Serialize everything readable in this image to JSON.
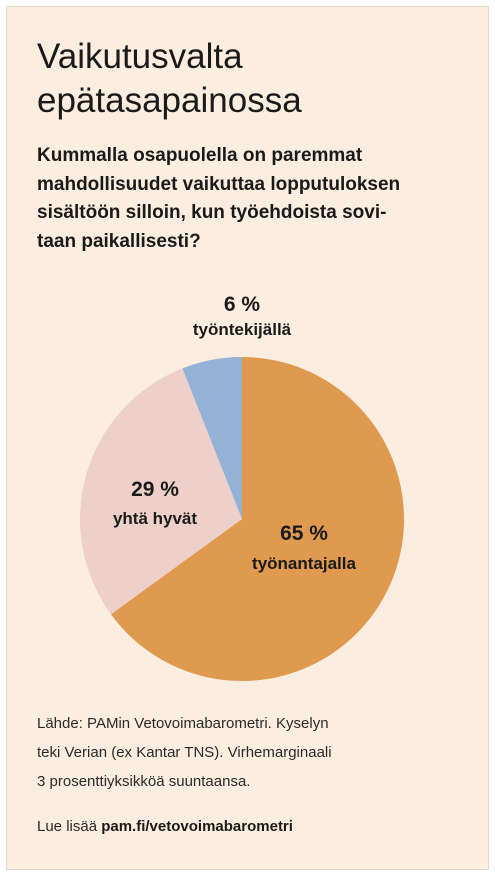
{
  "title_lines": [
    "Vaikutusvalta",
    "epätasapainossa"
  ],
  "question_lines": [
    "Kummalla osapuolella on paremmat",
    "mahdollisuudet vaikuttaa lopputuloksen",
    "sisältöön silloin, kun työehdoista sovi-",
    "taan paikallisesti?"
  ],
  "chart_data": {
    "type": "pie",
    "slices": [
      {
        "label": "työnantajalla",
        "value": 65,
        "value_label": "65 %",
        "color": "#e09a4f"
      },
      {
        "label": "yhtä hyvät",
        "value": 29,
        "value_label": "29 %",
        "color": "#edd0c9"
      },
      {
        "label": "työntekijällä",
        "value": 6,
        "value_label": "6 %",
        "color": "#94b2d6"
      }
    ]
  },
  "source_lines": [
    "Lähde: PAMin Vetovoimabarometri. Kyselyn",
    "teki Verian (ex Kantar TNS). Virhemarginaali",
    "3 prosenttiyksikköä suuntaansa."
  ],
  "read_more": {
    "prefix": "Lue lisää ",
    "link": "pam.fi/vetovoimabarometri"
  }
}
